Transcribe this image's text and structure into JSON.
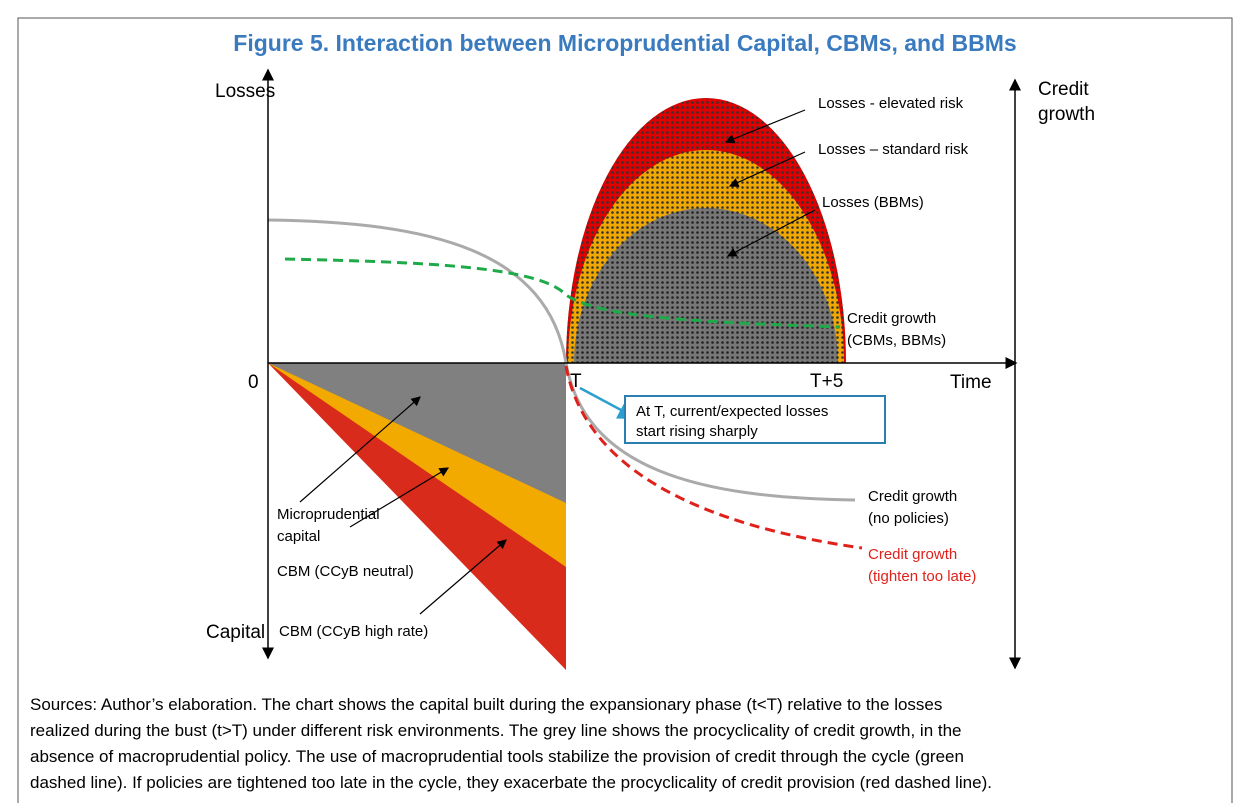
{
  "title": "Figure 5. Interaction between Microprudential Capital, CBMs, and BBMs",
  "axes": {
    "left_top": "Losses",
    "left_bottom": "Capital",
    "right_top": [
      "Credit",
      "growth"
    ],
    "origin": "0",
    "time": "Time",
    "t": "T",
    "t5": "T+5"
  },
  "labels": {
    "elevated": "Losses - elevated risk",
    "standard": "Losses – standard risk",
    "bbms": "Losses (BBMs)",
    "credit_cbm": [
      "Credit growth",
      "(CBMs, BBMs)"
    ],
    "credit_none": [
      "Credit growth",
      "(no policies)"
    ],
    "credit_late": [
      "Credit growth",
      "(tighten too late)"
    ],
    "micro": [
      "Microprudential",
      "capital"
    ],
    "cbm_neutral": "CBM (CCyB neutral)",
    "cbm_high": "CBM (CCyB high rate)",
    "annotation": [
      "At T, current/expected losses",
      "start rising sharply"
    ]
  },
  "caption": [
    "Sources: Author’s elaboration. The chart shows the capital built during the expansionary phase (t<T) relative to the losses",
    "realized during the bust (t>T) under different risk environments. The grey line shows the procyclicality of credit growth, in the",
    "absence of macroprudential policy. The use of macroprudential tools stabilize the provision of credit through the cycle (green",
    "dashed line). If policies are tightened too late in the cycle, they exacerbate the procyclicality of credit provision (red dashed line)."
  ]
}
